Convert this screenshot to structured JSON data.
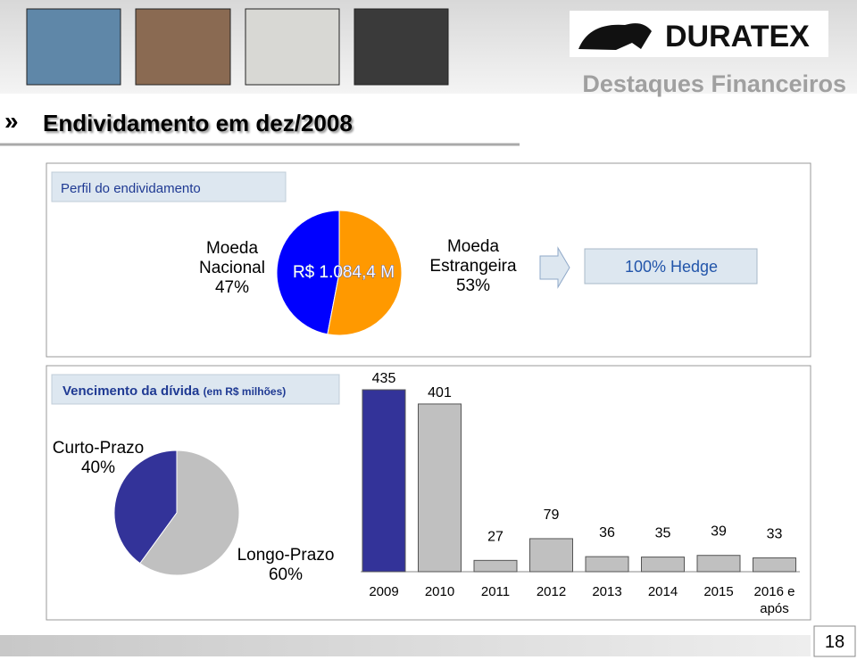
{
  "header": {
    "brand": "DURATEX",
    "section": "Destaques Financeiros"
  },
  "title": "Endividamento em dez/2008",
  "page_number": "18",
  "chart_data": [
    {
      "type": "pie",
      "title": "Perfil do endividamento",
      "center_label": "R$ 1.084,4 M",
      "categories": [
        "Moeda Nacional",
        "Moeda Estrangeira"
      ],
      "values": [
        47,
        53
      ],
      "value_labels": [
        "47%",
        "53%"
      ],
      "colors": [
        "#0000ff",
        "#ff9900"
      ],
      "direction": "counterclockwise",
      "annotation": "100% Hedge"
    },
    {
      "type": "pie",
      "title": "Vencimento da dívida",
      "subtitle": "(em R$ milhões)",
      "categories": [
        "Curto-Prazo",
        "Longo-Prazo"
      ],
      "values": [
        40,
        60
      ],
      "value_labels": [
        "40%",
        "60%"
      ],
      "colors": [
        "#333399",
        "#c0c0c0"
      ],
      "direction": "counterclockwise"
    },
    {
      "type": "bar",
      "categories": [
        "2009",
        "2010",
        "2011",
        "2012",
        "2013",
        "2014",
        "2015",
        "2016 e após"
      ],
      "values": [
        435,
        401,
        27,
        79,
        36,
        35,
        39,
        33
      ],
      "colors": [
        "#333399",
        "#c0c0c0",
        "#c0c0c0",
        "#c0c0c0",
        "#c0c0c0",
        "#c0c0c0",
        "#c0c0c0",
        "#c0c0c0"
      ]
    }
  ]
}
